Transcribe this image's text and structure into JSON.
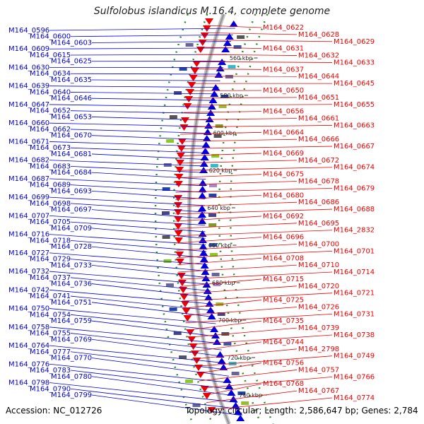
{
  "title": "Sulfolobus islandicus M.16.4, complete genome",
  "footer": {
    "accession": "Accession: NC_012726",
    "topology": "Topology: circular; Length: 2,586,647 bp; Genes: 2,784"
  },
  "colors": {
    "forward_strand": "#0000dd",
    "reverse_strand": "#ee0000",
    "backbone": "#999999",
    "dotted_track": "#2e8b2e"
  },
  "kbp_ticks": [
    "560 kbp",
    "580 kbp",
    "600 kbp",
    "620 kbp",
    "640 kbp",
    "660 kbp",
    "680 kbp",
    "700 kbp",
    "720 kbp",
    "740 kbp"
  ],
  "left_labels": [
    "M164_0596",
    "M164_0600",
    "M164_0603",
    "M164_0609",
    "M164_0615",
    "M164_0625",
    "M164_0630",
    "M164_0634",
    "M164_0635",
    "M164_0639",
    "M164_0640",
    "M164_0646",
    "M164_0647",
    "M164_0652",
    "M164_0653",
    "M164_0660",
    "M164_0662",
    "M164_0670",
    "M164_0671",
    "M164_0673",
    "M164_0681",
    "M164_0682",
    "M164_0683",
    "M164_0684",
    "M164_0687",
    "M164_0689",
    "M164_0693",
    "M164_0699",
    "M164_0698",
    "M164_0697",
    "M164_0707",
    "M164_0705",
    "M164_0709",
    "M164_0716",
    "M164_0718",
    "M164_0728",
    "M164_0727",
    "M164_0729",
    "M164_0733",
    "M164_0732",
    "M164_0737",
    "M164_0736",
    "M164_0742",
    "M164_0741",
    "M164_0751",
    "M164_0750",
    "M164_0754",
    "M164_0759",
    "M164_0758",
    "M164_0755",
    "M164_0769",
    "M164_0764",
    "M164_0777",
    "M164_0770",
    "M164_0776",
    "M164_0783",
    "M164_0780",
    "M164_0798",
    "M164_0790",
    "M164_0799"
  ],
  "right_labels": [
    "M164_0622",
    "M164_0628",
    "M164_0629",
    "M164_0631",
    "M164_0632",
    "M164_0633",
    "M164_0637",
    "M164_0644",
    "M164_0645",
    "M164_0650",
    "M164_0651",
    "M164_0655",
    "M164_0656",
    "M164_0661",
    "M164_0663",
    "M164_0664",
    "M164_0666",
    "M164_0667",
    "M164_0669",
    "M164_0672",
    "M164_0674",
    "M164_0675",
    "M164_0678",
    "M164_0679",
    "M164_0680",
    "M164_0686",
    "M164_0688",
    "M164_0692",
    "M164_0695",
    "M164_2832",
    "M164_0696",
    "M164_0700",
    "M164_0701",
    "M164_0708",
    "M164_0710",
    "M164_0714",
    "M164_0715",
    "M164_0720",
    "M164_0721",
    "M164_0725",
    "M164_0726",
    "M164_0731",
    "M164_0735",
    "M164_0739",
    "M164_0738",
    "M164_0744",
    "M164_2798",
    "M164_0749",
    "M164_0756",
    "M164_0757",
    "M164_0766",
    "M164_0768",
    "M164_0767",
    "M164_0774"
  ]
}
